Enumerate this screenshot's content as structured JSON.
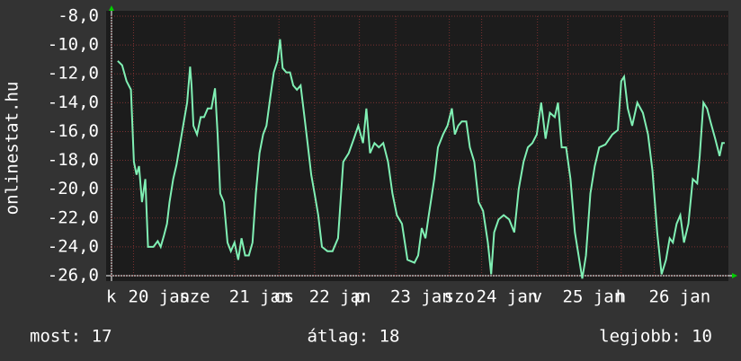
{
  "chart_data": {
    "type": "line",
    "y_label": "onlinestat.hu",
    "xlim": [
      0,
      168
    ],
    "ylim": [
      -26,
      -8
    ],
    "yticks": [
      {
        "value": -8,
        "label": "-8,0"
      },
      {
        "value": -10,
        "label": "-10,0"
      },
      {
        "value": -12,
        "label": "-12,0"
      },
      {
        "value": -14,
        "label": "-14,0"
      },
      {
        "value": -16,
        "label": "-16,0"
      },
      {
        "value": -18,
        "label": "-18,0"
      },
      {
        "value": -20,
        "label": "-20,0"
      },
      {
        "value": -22,
        "label": "-22,0"
      },
      {
        "value": -24,
        "label": "-24,0"
      },
      {
        "value": -26,
        "label": "-26,0"
      }
    ],
    "xticks": [
      {
        "value": 0,
        "label": "k"
      },
      {
        "value": 6,
        "label": "20 jan"
      },
      {
        "value": 19.9,
        "label": "sze"
      },
      {
        "value": 33.5,
        "label": "21 jan"
      },
      {
        "value": 45.6,
        "label": "cs"
      },
      {
        "value": 55.3,
        "label": "22 jan"
      },
      {
        "value": 67.5,
        "label": "p"
      },
      {
        "value": 77.4,
        "label": "23 jan"
      },
      {
        "value": 92,
        "label": "szo"
      },
      {
        "value": 100.8,
        "label": "24 jan"
      },
      {
        "value": 116,
        "label": "v"
      },
      {
        "value": 124.3,
        "label": "25 jan"
      },
      {
        "value": 138.8,
        "label": "h"
      },
      {
        "value": 147.8,
        "label": "26 jan"
      }
    ],
    "grid": true,
    "x": [
      1.7,
      2.9,
      4.1,
      5.3,
      6.1,
      6.8,
      7.5,
      8.3,
      9.2,
      9.95,
      11.4,
      12.6,
      13.4,
      14.3,
      15.1,
      15.8,
      16.8,
      17.7,
      18.7,
      19.9,
      20.6,
      21.4,
      21.8,
      22.3,
      23.3,
      24.3,
      25.2,
      26.2,
      27.2,
      28.2,
      28.9,
      29.6,
      30.6,
      31.6,
      32.5,
      33.5,
      34.5,
      35.4,
      36.4,
      37.4,
      38.4,
      39.3,
      40.3,
      41.3,
      42.2,
      43.2,
      44.2,
      45.2,
      45.9,
      46.6,
      47.6,
      48.6,
      49.5,
      50.5,
      51.5,
      52.4,
      53.4,
      54.4,
      55.3,
      56.3,
      57.3,
      58.8,
      60.2,
      61.7,
      63.1,
      64.6,
      66.0,
      67.2,
      68.5,
      69.4,
      70.4,
      71.6,
      72.8,
      74.0,
      75.3,
      76.5,
      77.7,
      79.1,
      80.6,
      82.5,
      83.5,
      84.5,
      85.5,
      86.4,
      87.9,
      88.9,
      90.3,
      91.5,
      92.7,
      93.5,
      94.4,
      95.4,
      96.6,
      97.6,
      98.8,
      100.0,
      101.2,
      102.5,
      103.4,
      104.2,
      105.4,
      106.8,
      108.3,
      109.7,
      110.9,
      112.2,
      113.4,
      114.6,
      115.8,
      117.0,
      118.2,
      119.4,
      120.7,
      121.6,
      122.6,
      123.8,
      125.0,
      126.2,
      127.2,
      128.2,
      129.2,
      130.4,
      131.6,
      132.8,
      134.5,
      136.4,
      137.9,
      138.8,
      139.6,
      140.6,
      141.8,
      143.2,
      144.7,
      146.1,
      147.3,
      148.6,
      149.8,
      151.0,
      152.0,
      152.9,
      153.9,
      154.9,
      155.9,
      157.1,
      158.3,
      159.5,
      160.2,
      161.2,
      162.2,
      163.1,
      164.4,
      165.6,
      166.3,
      167.0
    ],
    "series": [
      {
        "color": "#80f0b4",
        "values": [
          -11.1,
          -11.4,
          -12.5,
          -13.1,
          -18.1,
          -19.0,
          -18.4,
          -20.9,
          -19.3,
          -24.0,
          -24.0,
          -23.6,
          -24.0,
          -23.2,
          -22.4,
          -20.9,
          -19.3,
          -18.3,
          -16.8,
          -15.0,
          -14.0,
          -11.5,
          -12.8,
          -15.6,
          -16.2,
          -15.0,
          -15.0,
          -14.4,
          -14.4,
          -13.0,
          -16.2,
          -20.3,
          -20.9,
          -23.7,
          -24.3,
          -23.7,
          -24.9,
          -23.4,
          -24.6,
          -24.6,
          -23.7,
          -20.3,
          -17.5,
          -16.2,
          -15.6,
          -13.7,
          -11.9,
          -11.1,
          -9.6,
          -11.6,
          -11.9,
          -11.9,
          -12.8,
          -13.1,
          -12.8,
          -14.7,
          -16.8,
          -19.0,
          -20.3,
          -21.8,
          -24.0,
          -24.3,
          -24.3,
          -23.4,
          -18.1,
          -17.5,
          -16.5,
          -15.6,
          -16.8,
          -14.4,
          -17.5,
          -16.8,
          -17.1,
          -16.8,
          -18.1,
          -20.3,
          -21.8,
          -22.4,
          -24.9,
          -25.1,
          -24.6,
          -22.7,
          -23.4,
          -21.8,
          -19.3,
          -17.1,
          -16.2,
          -15.6,
          -14.4,
          -16.2,
          -15.6,
          -15.3,
          -15.3,
          -17.1,
          -18.1,
          -20.9,
          -21.5,
          -23.7,
          -25.9,
          -23.0,
          -22.1,
          -21.8,
          -22.1,
          -23.0,
          -20.0,
          -18.1,
          -17.1,
          -16.8,
          -16.2,
          -14.0,
          -16.5,
          -14.7,
          -15.0,
          -14.0,
          -17.1,
          -17.1,
          -19.3,
          -23.0,
          -24.6,
          -26.2,
          -24.6,
          -20.3,
          -18.4,
          -17.1,
          -16.9,
          -16.2,
          -15.9,
          -12.5,
          -12.2,
          -14.4,
          -15.6,
          -14.0,
          -14.7,
          -16.2,
          -18.7,
          -23.0,
          -25.9,
          -24.9,
          -23.4,
          -23.7,
          -22.4,
          -21.8,
          -23.7,
          -22.4,
          -19.3,
          -19.6,
          -17.7,
          -14.0,
          -14.4,
          -15.3,
          -16.5,
          -17.7,
          -16.8,
          -16.8
        ]
      }
    ],
    "annotations": [
      "most: 17",
      "átlag: 18",
      "legjobb: 10"
    ]
  }
}
